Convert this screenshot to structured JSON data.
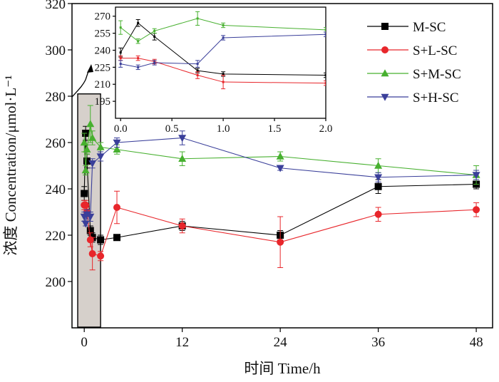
{
  "chart_data": [
    {
      "type": "line",
      "xlabel": "时间 Time/h",
      "ylabel": "浓度 Concentration/μmol·L⁻¹",
      "xlim": [
        -1.5,
        50
      ],
      "ylim": [
        180,
        320
      ],
      "xticks": [
        0,
        12,
        24,
        36,
        48
      ],
      "yticks": [
        200,
        220,
        240,
        260,
        280,
        300,
        320
      ],
      "grid": false,
      "legend_position": "top-right",
      "highlight_region": {
        "x": [
          -0.8,
          2.0
        ],
        "y": [
          180,
          281
        ]
      },
      "series": [
        {
          "name": "M-SC",
          "color": "#000000",
          "marker": "square",
          "x": [
            0,
            0.17,
            0.33,
            0.75,
            1,
            2,
            4,
            12,
            24,
            36,
            48
          ],
          "y": [
            238,
            264,
            252,
            222,
            219,
            218,
            219,
            224,
            220,
            241,
            242
          ],
          "err": [
            3,
            3,
            3,
            2,
            2,
            2,
            1,
            2,
            2,
            3,
            2
          ]
        },
        {
          "name": "S+L-SC",
          "color": "#e8262b",
          "marker": "circle",
          "x": [
            0,
            0.17,
            0.33,
            0.75,
            1,
            2,
            4,
            12,
            24,
            36,
            48
          ],
          "y": [
            233,
            233,
            230,
            218,
            212,
            211,
            232,
            224,
            217,
            229,
            231
          ],
          "err": [
            2,
            2,
            2,
            3,
            7,
            2,
            7,
            3,
            11,
            3,
            3
          ]
        },
        {
          "name": "S+M-SC",
          "color": "#47b02f",
          "marker": "triangle-up",
          "x": [
            0,
            0.17,
            0.33,
            0.75,
            1,
            2,
            4,
            12,
            24,
            36,
            48
          ],
          "y": [
            260,
            248,
            257,
            268,
            262,
            258,
            257,
            253,
            254,
            250,
            246
          ],
          "err": [
            4,
            2,
            2,
            8,
            3,
            2,
            2,
            3,
            2,
            3,
            4
          ]
        },
        {
          "name": "S+H-SC",
          "color": "#3a3f9a",
          "marker": "triangle-down",
          "x": [
            0,
            0.17,
            0.33,
            0.75,
            1,
            2,
            4,
            12,
            24,
            36,
            48
          ],
          "y": [
            228,
            225,
            229,
            228,
            251,
            254,
            260,
            262,
            249,
            245,
            246
          ],
          "err": [
            2,
            1,
            2,
            2,
            2,
            2,
            2,
            3,
            1,
            2,
            2
          ]
        }
      ]
    },
    {
      "type": "line",
      "role": "inset",
      "xlim": [
        -0.05,
        2.0
      ],
      "ylim": [
        180,
        278
      ],
      "xticks": [
        0.0,
        0.5,
        1.0,
        1.5,
        2.0
      ],
      "yticks": [
        195,
        210,
        225,
        240,
        255,
        270
      ],
      "series": [
        {
          "name": "M-SC",
          "color": "#000000",
          "x": [
            0,
            0.17,
            0.33,
            0.75,
            1,
            2
          ],
          "y": [
            238,
            264,
            252,
            222,
            219,
            218
          ],
          "err": [
            4,
            3,
            3,
            2,
            2,
            2
          ]
        },
        {
          "name": "S+L-SC",
          "color": "#e8262b",
          "x": [
            0,
            0.17,
            0.33,
            0.75,
            1,
            2
          ],
          "y": [
            233,
            233,
            230,
            218,
            212,
            211
          ],
          "err": [
            2,
            2,
            2,
            3,
            6,
            2
          ]
        },
        {
          "name": "S+M-SC",
          "color": "#47b02f",
          "x": [
            0,
            0.17,
            0.33,
            0.75,
            1,
            2
          ],
          "y": [
            260,
            248,
            257,
            268,
            262,
            258
          ],
          "err": [
            6,
            2,
            2,
            6,
            2,
            2
          ]
        },
        {
          "name": "S+H-SC",
          "color": "#3a3f9a",
          "x": [
            0,
            0.17,
            0.33,
            0.75,
            1,
            2
          ],
          "y": [
            228,
            225,
            229,
            228,
            251,
            254
          ],
          "err": [
            3,
            2,
            2,
            3,
            2,
            2
          ]
        }
      ]
    }
  ]
}
